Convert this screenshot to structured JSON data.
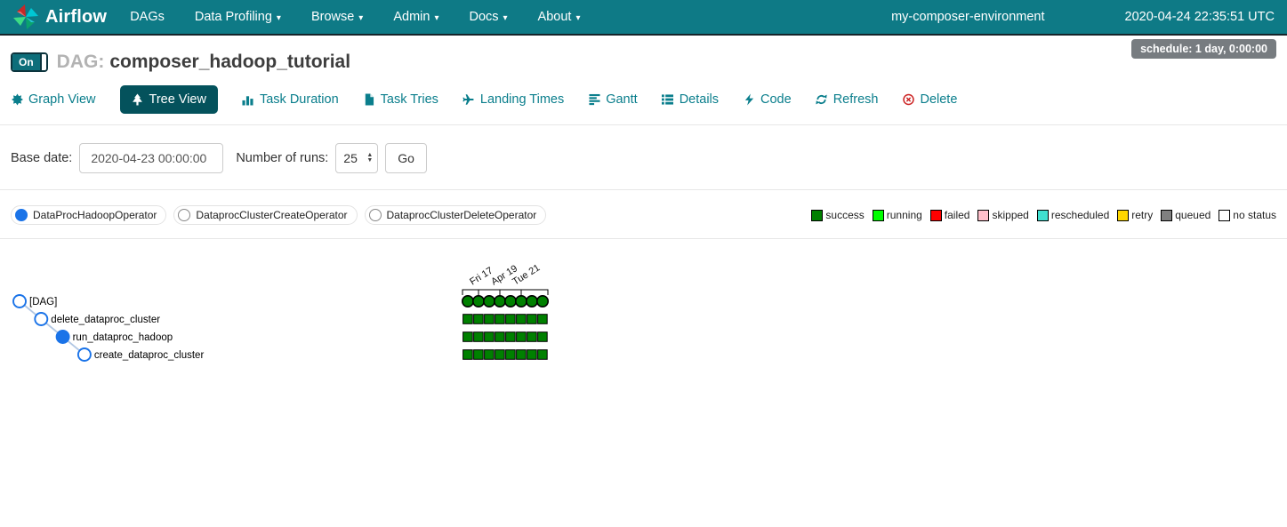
{
  "navbar": {
    "brand": "Airflow",
    "items": [
      {
        "label": "DAGs",
        "dropdown": false
      },
      {
        "label": "Data Profiling",
        "dropdown": true
      },
      {
        "label": "Browse",
        "dropdown": true
      },
      {
        "label": "Admin",
        "dropdown": true
      },
      {
        "label": "Docs",
        "dropdown": true
      },
      {
        "label": "About",
        "dropdown": true
      }
    ],
    "environment": "my-composer-environment",
    "clock": "2020-04-24 22:35:51 UTC"
  },
  "dag_header": {
    "toggle_label": "On",
    "prefix": "DAG:",
    "title": "composer_hadoop_tutorial",
    "schedule_badge": "schedule: 1 day, 0:00:00"
  },
  "tabs": [
    {
      "label": "Graph View",
      "icon": "graph-view-icon",
      "active": false,
      "danger": false
    },
    {
      "label": "Tree View",
      "icon": "tree-view-icon",
      "active": true,
      "danger": false
    },
    {
      "label": "Task Duration",
      "icon": "bar-chart-icon",
      "active": false,
      "danger": false
    },
    {
      "label": "Task Tries",
      "icon": "file-copy-icon",
      "active": false,
      "danger": false
    },
    {
      "label": "Landing Times",
      "icon": "plane-icon",
      "active": false,
      "danger": false
    },
    {
      "label": "Gantt",
      "icon": "align-left-icon",
      "active": false,
      "danger": false
    },
    {
      "label": "Details",
      "icon": "list-icon",
      "active": false,
      "danger": false
    },
    {
      "label": "Code",
      "icon": "bolt-icon",
      "active": false,
      "danger": false
    },
    {
      "label": "Refresh",
      "icon": "refresh-icon",
      "active": false,
      "danger": false
    },
    {
      "label": "Delete",
      "icon": "delete-icon",
      "active": false,
      "danger": true
    }
  ],
  "filter_form": {
    "base_date_label": "Base date:",
    "base_date_value": "2020-04-23 00:00:00",
    "num_runs_label": "Number of runs:",
    "num_runs_value": "25",
    "go_label": "Go"
  },
  "operator_legend": [
    {
      "label": "DataProcHadoopOperator",
      "filled": true,
      "color": "#1a73e8"
    },
    {
      "label": "DataprocClusterCreateOperator",
      "filled": false,
      "color": "#888888"
    },
    {
      "label": "DataprocClusterDeleteOperator",
      "filled": false,
      "color": "#888888"
    }
  ],
  "status_legend": [
    {
      "label": "success",
      "color": "#008000"
    },
    {
      "label": "running",
      "color": "#00ff00"
    },
    {
      "label": "failed",
      "color": "#ff0000"
    },
    {
      "label": "skipped",
      "color": "#ffc0cb"
    },
    {
      "label": "rescheduled",
      "color": "#40e0d0"
    },
    {
      "label": "retry",
      "color": "#ffd700"
    },
    {
      "label": "queued",
      "color": "#808080"
    },
    {
      "label": "no status",
      "color": "#ffffff"
    }
  ],
  "tree": {
    "axis_tick_labels": [
      "Fri 17",
      "Apr 19",
      "Tue 21"
    ],
    "node_color": "#1a73e8",
    "link_color": "#b3c8e4",
    "rows": [
      {
        "label": "[DAG]",
        "shape": "circle",
        "filled": false,
        "statuses": [
          "success",
          "success",
          "success",
          "success",
          "success",
          "success",
          "success",
          "success"
        ]
      },
      {
        "label": "delete_dataproc_cluster",
        "shape": "square",
        "filled": false,
        "statuses": [
          "success",
          "success",
          "success",
          "success",
          "success",
          "success",
          "success",
          "success"
        ]
      },
      {
        "label": "run_dataproc_hadoop",
        "shape": "square",
        "filled": true,
        "statuses": [
          "success",
          "success",
          "success",
          "success",
          "success",
          "success",
          "success",
          "success"
        ]
      },
      {
        "label": "create_dataproc_cluster",
        "shape": "square",
        "filled": false,
        "statuses": [
          "success",
          "success",
          "success",
          "success",
          "success",
          "success",
          "success",
          "success"
        ]
      }
    ]
  },
  "colors": {
    "navbar_teal": "#0e7a86",
    "active_tab_teal": "#04525c",
    "link_teal": "#0a7e8c",
    "badge_gray": "#777c80",
    "delete_red": "#cc2222",
    "operator_blue": "#1a73e8"
  }
}
